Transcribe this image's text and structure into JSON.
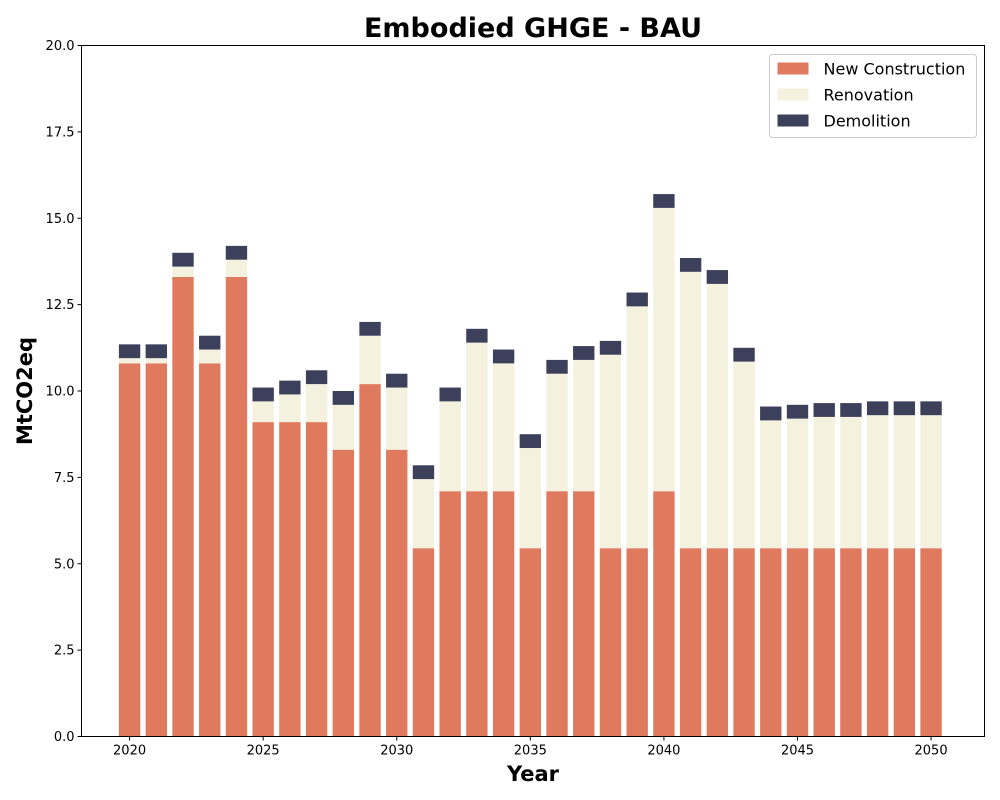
{
  "chart_data": {
    "type": "bar",
    "stacked": true,
    "title": "Embodied GHGE - BAU",
    "xlabel": "Year",
    "ylabel": "MtCO2eq",
    "ylim": [
      0,
      20
    ],
    "xlim": [
      2018.2,
      2052
    ],
    "x_ticks": [
      2020,
      2025,
      2030,
      2035,
      2040,
      2045,
      2050
    ],
    "y_ticks": [
      0.0,
      2.5,
      5.0,
      7.5,
      10.0,
      12.5,
      15.0,
      17.5,
      20.0
    ],
    "y_tick_labels": [
      "0.0",
      "2.5",
      "5.0",
      "7.5",
      "10.0",
      "12.5",
      "15.0",
      "17.5",
      "20.0"
    ],
    "grid": false,
    "legend_position": "top-right",
    "x": [
      2020,
      2021,
      2022,
      2023,
      2024,
      2025,
      2026,
      2027,
      2028,
      2029,
      2030,
      2031,
      2032,
      2033,
      2034,
      2035,
      2036,
      2037,
      2038,
      2039,
      2040,
      2041,
      2042,
      2043,
      2044,
      2045,
      2046,
      2047,
      2048,
      2049,
      2050
    ],
    "series": [
      {
        "name": "New Construction",
        "color": "#e07a5f",
        "values": [
          10.8,
          10.8,
          13.3,
          10.8,
          13.3,
          9.1,
          9.1,
          9.1,
          8.3,
          10.2,
          8.3,
          5.45,
          7.1,
          7.1,
          7.1,
          5.45,
          7.1,
          7.1,
          5.45,
          5.45,
          7.1,
          5.45,
          5.45,
          5.45,
          5.45,
          5.45,
          5.45,
          5.45,
          5.45,
          5.45,
          5.45
        ]
      },
      {
        "name": "Renovation",
        "color": "#f4f1de",
        "values": [
          0.15,
          0.15,
          0.3,
          0.4,
          0.5,
          0.6,
          0.8,
          1.1,
          1.3,
          1.4,
          1.8,
          2.0,
          2.6,
          4.3,
          3.7,
          2.9,
          3.4,
          3.8,
          5.6,
          7.0,
          8.2,
          8.0,
          7.65,
          5.4,
          3.7,
          3.75,
          3.8,
          3.8,
          3.85,
          3.85,
          3.85
        ]
      },
      {
        "name": "Demolition",
        "color": "#3d405b",
        "values": [
          0.4,
          0.4,
          0.4,
          0.4,
          0.4,
          0.4,
          0.4,
          0.4,
          0.4,
          0.4,
          0.4,
          0.4,
          0.4,
          0.4,
          0.4,
          0.4,
          0.4,
          0.4,
          0.4,
          0.4,
          0.4,
          0.4,
          0.4,
          0.4,
          0.4,
          0.4,
          0.4,
          0.4,
          0.4,
          0.4,
          0.4
        ]
      }
    ]
  }
}
